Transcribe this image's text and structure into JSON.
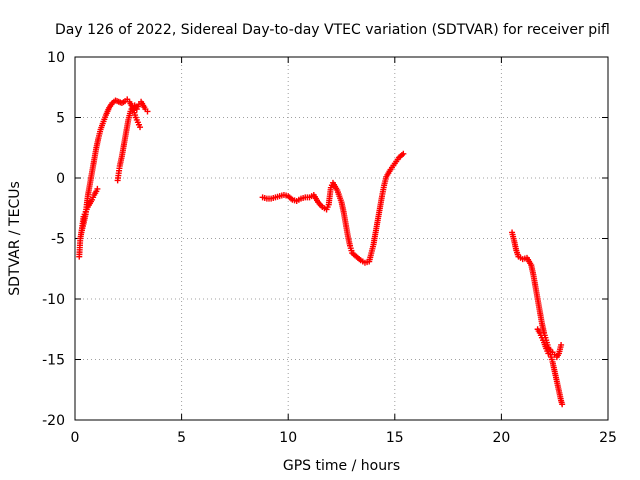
{
  "chart_data": {
    "type": "scatter",
    "title": "Day 126 of 2022, Sidereal Day-to-day VTEC variation (SDTVAR) for receiver pifl",
    "xlabel": "GPS time / hours",
    "ylabel": "SDTVAR / TECUs",
    "xlim": [
      0,
      25
    ],
    "ylim": [
      -20,
      10
    ],
    "xticks": [
      0,
      5,
      10,
      15,
      20,
      25
    ],
    "yticks": [
      -20,
      -15,
      -10,
      -5,
      0,
      5,
      10
    ],
    "xtick_labels": [
      "0",
      "5",
      "10",
      "15",
      "20",
      "25"
    ],
    "ytick_labels": [
      "-20",
      "-15",
      "-10",
      "-5",
      "0",
      "5",
      "10"
    ],
    "grid": true,
    "marker_color": "#ff0000",
    "series": [
      {
        "segments": [
          [
            [
              0.2,
              -6.5
            ],
            [
              0.25,
              -5
            ],
            [
              0.3,
              -4.5
            ],
            [
              0.4,
              -3.8
            ],
            [
              0.5,
              -3
            ],
            [
              0.55,
              -2.2
            ],
            [
              0.6,
              -1.5
            ],
            [
              0.7,
              -0.5
            ],
            [
              0.8,
              0.5
            ],
            [
              0.9,
              1.5
            ],
            [
              1.0,
              2.5
            ],
            [
              1.1,
              3.3
            ],
            [
              1.2,
              4
            ],
            [
              1.3,
              4.5
            ],
            [
              1.45,
              5.2
            ],
            [
              1.6,
              5.8
            ],
            [
              1.75,
              6.2
            ],
            [
              1.9,
              6.4
            ],
            [
              2.05,
              6.3
            ],
            [
              2.2,
              6.2
            ],
            [
              2.35,
              6.35
            ],
            [
              2.45,
              6.5
            ],
            [
              2.55,
              6.3
            ],
            [
              2.65,
              6.0
            ],
            [
              2.75,
              5.6
            ],
            [
              2.85,
              5.0
            ],
            [
              2.95,
              4.6
            ],
            [
              3.05,
              4.2
            ]
          ],
          [
            [
              0.3,
              -4.5
            ],
            [
              0.4,
              -3.2
            ],
            [
              0.5,
              -2.8
            ],
            [
              0.6,
              -2.4
            ],
            [
              0.7,
              -2.1
            ],
            [
              0.8,
              -1.8
            ],
            [
              0.9,
              -1.4
            ],
            [
              1.0,
              -1.1
            ],
            [
              1.05,
              -0.9
            ]
          ],
          [
            [
              2.0,
              -0.2
            ],
            [
              2.05,
              0.4
            ],
            [
              2.1,
              1.0
            ],
            [
              2.2,
              1.8
            ],
            [
              2.3,
              2.8
            ],
            [
              2.4,
              3.8
            ],
            [
              2.5,
              4.8
            ],
            [
              2.6,
              5.5
            ],
            [
              2.7,
              5.9
            ],
            [
              2.8,
              6.0
            ],
            [
              2.9,
              5.7
            ],
            [
              3.0,
              6.1
            ],
            [
              3.1,
              6.3
            ],
            [
              3.2,
              6.0
            ],
            [
              3.3,
              5.7
            ],
            [
              3.4,
              5.5
            ]
          ],
          [
            [
              8.8,
              -1.6
            ],
            [
              9.0,
              -1.7
            ],
            [
              9.2,
              -1.7
            ],
            [
              9.4,
              -1.6
            ],
            [
              9.6,
              -1.5
            ],
            [
              9.8,
              -1.4
            ],
            [
              10.0,
              -1.5
            ],
            [
              10.2,
              -1.8
            ],
            [
              10.4,
              -1.9
            ],
            [
              10.6,
              -1.7
            ],
            [
              10.8,
              -1.6
            ],
            [
              11.0,
              -1.6
            ],
            [
              11.2,
              -1.4
            ],
            [
              11.4,
              -2.0
            ],
            [
              11.6,
              -2.4
            ],
            [
              11.8,
              -2.6
            ],
            [
              11.9,
              -2.2
            ],
            [
              12.0,
              -0.8
            ],
            [
              12.1,
              -0.4
            ],
            [
              12.3,
              -1.0
            ],
            [
              12.5,
              -2.0
            ],
            [
              12.6,
              -2.8
            ],
            [
              12.7,
              -3.8
            ],
            [
              12.8,
              -4.8
            ],
            [
              12.9,
              -5.6
            ],
            [
              13.0,
              -6.2
            ],
            [
              13.2,
              -6.5
            ],
            [
              13.4,
              -6.8
            ],
            [
              13.6,
              -7.0
            ],
            [
              13.8,
              -6.9
            ],
            [
              13.9,
              -6.2
            ],
            [
              14.0,
              -5.5
            ],
            [
              14.1,
              -4.5
            ],
            [
              14.2,
              -3.5
            ],
            [
              14.3,
              -2.5
            ],
            [
              14.4,
              -1.5
            ],
            [
              14.5,
              -0.6
            ],
            [
              14.6,
              0.1
            ],
            [
              14.8,
              0.7
            ],
            [
              15.0,
              1.2
            ],
            [
              15.2,
              1.7
            ],
            [
              15.4,
              2.0
            ]
          ],
          [
            [
              20.5,
              -4.5
            ],
            [
              20.6,
              -5.2
            ],
            [
              20.7,
              -6.0
            ],
            [
              20.8,
              -6.5
            ],
            [
              21.0,
              -6.7
            ],
            [
              21.2,
              -6.6
            ],
            [
              21.4,
              -7.2
            ],
            [
              21.5,
              -8.0
            ],
            [
              21.6,
              -9.0
            ],
            [
              21.7,
              -10.0
            ],
            [
              21.8,
              -11.0
            ],
            [
              21.9,
              -12.0
            ],
            [
              22.0,
              -12.8
            ],
            [
              22.1,
              -13.4
            ],
            [
              22.2,
              -14.0
            ],
            [
              22.3,
              -14.3
            ],
            [
              22.4,
              -14.4
            ],
            [
              22.5,
              -14.6
            ],
            [
              22.6,
              -14.8
            ],
            [
              22.7,
              -14.5
            ],
            [
              22.8,
              -13.8
            ]
          ],
          [
            [
              21.7,
              -12.5
            ],
            [
              21.8,
              -12.8
            ],
            [
              21.9,
              -13.2
            ],
            [
              22.0,
              -13.6
            ],
            [
              22.1,
              -14.1
            ],
            [
              22.2,
              -14.5
            ],
            [
              22.3,
              -14.6
            ],
            [
              22.4,
              -15.2
            ],
            [
              22.5,
              -16.0
            ],
            [
              22.6,
              -16.8
            ],
            [
              22.7,
              -17.6
            ],
            [
              22.8,
              -18.4
            ],
            [
              22.85,
              -18.7
            ]
          ]
        ]
      }
    ]
  }
}
